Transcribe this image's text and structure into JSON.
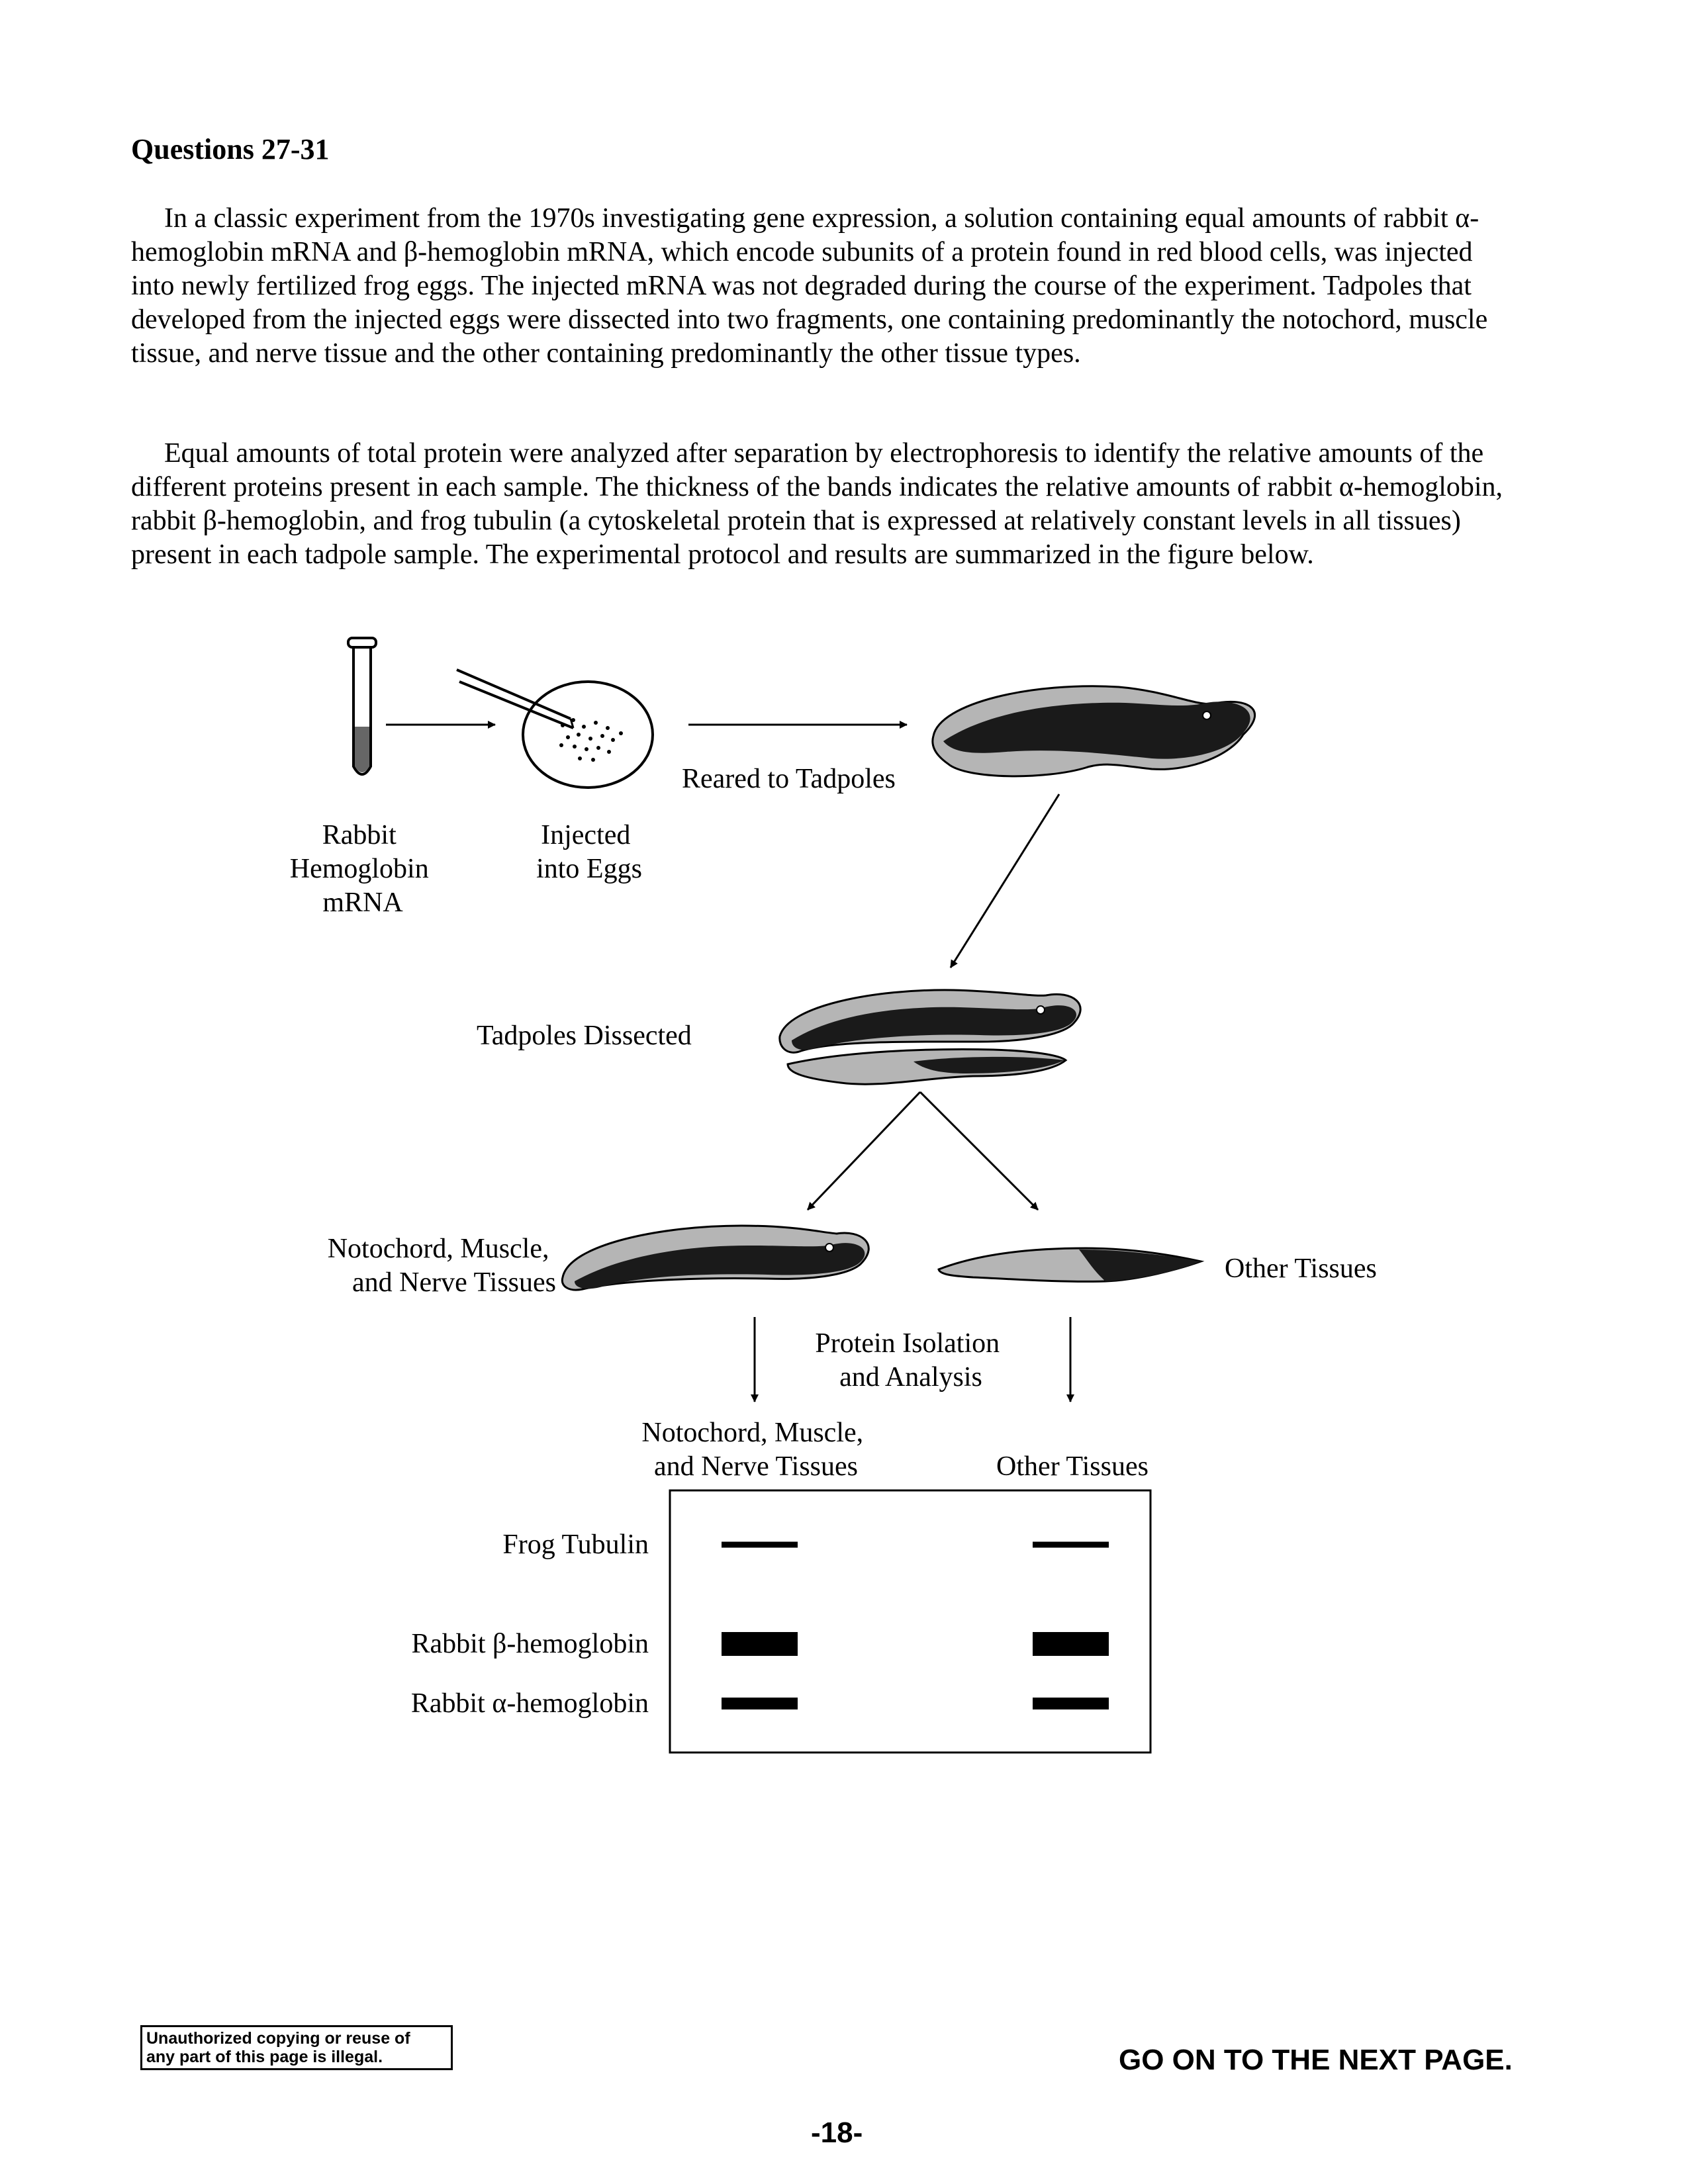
{
  "heading": "Questions 27-31",
  "paragraph1": "In a classic experiment from the 1970s investigating gene expression, a solution containing equal amounts of rabbit α-hemoglobin mRNA and β-hemoglobin mRNA, which encode subunits of a protein found in red blood cells, was injected into newly fertilized frog eggs. The injected mRNA was not degraded during the course of the experiment. Tadpoles that developed from the injected eggs were dissected into two fragments, one containing predominantly the notochord, muscle tissue, and nerve tissue and the other containing predominantly the other tissue types.",
  "paragraph2": "Equal amounts of total protein were analyzed after separation by electrophoresis to identify the relative amounts of the different proteins present in each sample. The thickness of the bands indicates the relative amounts of rabbit α-hemoglobin, rabbit β-hemoglobin, and frog tubulin (a cytoskeletal protein that is expressed at relatively constant levels in all tissues) present in each tadpole sample. The experimental protocol and results are summarized in the figure below.",
  "figure": {
    "tube_label": [
      "Rabbit",
      "Hemoglobin",
      "mRNA"
    ],
    "egg_label": [
      "Injected",
      "into Eggs"
    ],
    "reared_label": "Reared to Tadpoles",
    "dissected_label": "Tadpoles Dissected",
    "left_fragment_label": [
      "Notochord, Muscle,",
      "and Nerve Tissues"
    ],
    "right_fragment_label": "Other Tissues",
    "analysis_label": [
      "Protein Isolation",
      "and Analysis"
    ],
    "gel": {
      "column_headers": [
        [
          "Notochord, Muscle,",
          "and Nerve Tissues"
        ],
        [
          "Other Tissues"
        ]
      ],
      "rows": [
        {
          "label": "Frog Tubulin",
          "band_thickness": [
            1,
            1
          ]
        },
        {
          "label": "Rabbit β-hemoglobin",
          "band_thickness": [
            4,
            4
          ]
        },
        {
          "label": "Rabbit α-hemoglobin",
          "band_thickness": [
            2,
            2
          ]
        }
      ]
    }
  },
  "footer": {
    "notice": [
      "Unauthorized copying or reuse of",
      "any part of this page is illegal."
    ],
    "go_next": "GO ON TO THE NEXT PAGE.",
    "page_number": "-18-"
  }
}
